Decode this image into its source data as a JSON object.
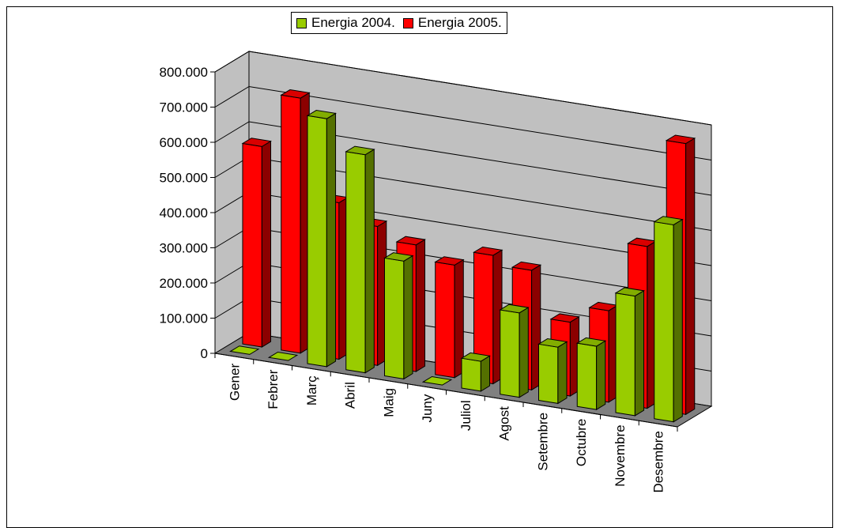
{
  "chart_data": {
    "type": "bar",
    "subtype": "3d-clustered-column",
    "categories": [
      "Gener",
      "Febrer",
      "Març",
      "Abril",
      "Maig",
      "Juny",
      "Juliol",
      "Agost",
      "Setembre",
      "Octubre",
      "Novembre",
      "Desembre"
    ],
    "series": [
      {
        "name": "Energia 2004.",
        "color": "#99cc00",
        "values": [
          0,
          0,
          705000,
          620000,
          335000,
          0,
          85000,
          240000,
          160000,
          180000,
          340000,
          560000
        ]
      },
      {
        "name": "Energia 2005.",
        "color": "#ff0000",
        "values": [
          570000,
          725000,
          445000,
          395000,
          360000,
          320000,
          365000,
          340000,
          210000,
          260000,
          460000,
          770000
        ]
      }
    ],
    "yticks": [
      "0",
      "100.000",
      "200.000",
      "300.000",
      "400.000",
      "500.000",
      "600.000",
      "700.000",
      "800.000"
    ],
    "ylim": [
      0,
      800000
    ],
    "title": "",
    "xlabel": "",
    "ylabel": "",
    "grid": true,
    "legend_position": "top-center",
    "wall_color": "#c0c0c0"
  }
}
